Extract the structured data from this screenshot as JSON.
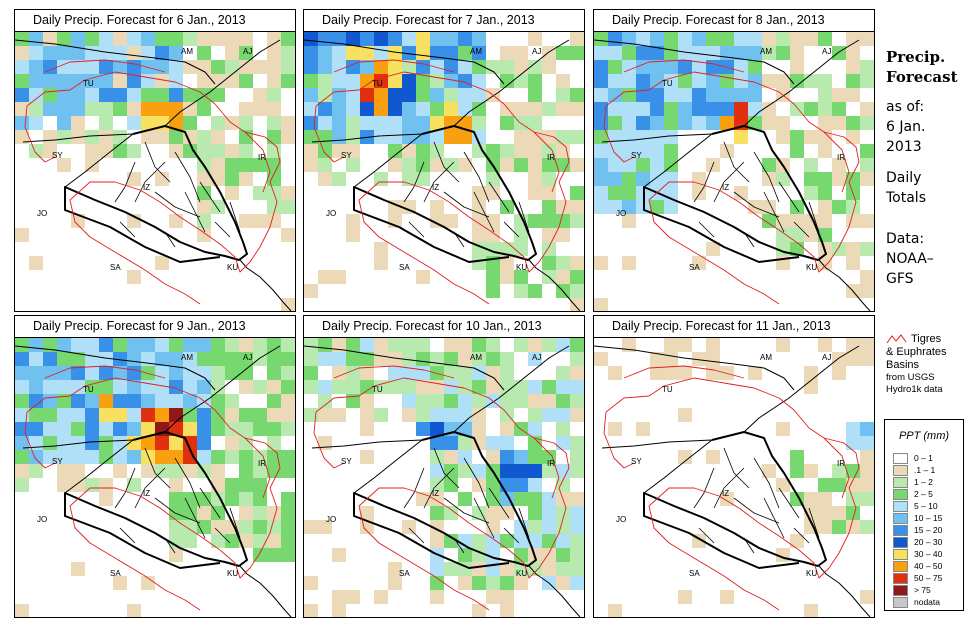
{
  "panels": [
    {
      "title": "Daily Precip. Forecast for  6 Jan., 2013",
      "level": 0
    },
    {
      "title": "Daily Precip. Forecast for  7 Jan., 2013",
      "level": 1
    },
    {
      "title": "Daily Precip. Forecast for  8 Jan., 2013",
      "level": 2
    },
    {
      "title": "Daily Precip. Forecast for  9 Jan., 2013",
      "level": 3
    },
    {
      "title": "Daily Precip. Forecast for  10 Jan., 2013",
      "level": 4
    },
    {
      "title": "Daily Precip. Forecast for  11 Jan., 2013",
      "level": 5
    }
  ],
  "country_labels": [
    "AM",
    "AJ",
    "TU",
    "SY",
    "IR",
    "IZ",
    "JO",
    "SA",
    "KU"
  ],
  "sidebar": {
    "heading_line1": "Precip.",
    "heading_line2": "Forecast",
    "asof_label": "as of:",
    "date_line1": "6 Jan.",
    "date_line2": "2013",
    "daily_line1": "Daily",
    "daily_line2": "Totals",
    "data_line1": "Data:",
    "data_line2": "NOAA–",
    "data_line3": "GFS"
  },
  "basin_legend": {
    "line1": "Tigres",
    "line2": "& Euphrates",
    "line3": "Basins",
    "line4": "from USGS",
    "line5": "Hydro1k data",
    "color": "#e02020"
  },
  "scale": {
    "title": "PPT (mm)",
    "entries": [
      {
        "label": "0 – 1",
        "color": "#ffffff"
      },
      {
        "label": ".1 – 1",
        "color": "#ecd9b8"
      },
      {
        "label": "1 – 2",
        "color": "#b8eab0"
      },
      {
        "label": "2 – 5",
        "color": "#78d870"
      },
      {
        "label": "5 – 10",
        "color": "#b0e0f8"
      },
      {
        "label": "10 – 15",
        "color": "#70c0f0"
      },
      {
        "label": "15 – 20",
        "color": "#3890e8"
      },
      {
        "label": "20 – 30",
        "color": "#1058d0"
      },
      {
        "label": "30 – 40",
        "color": "#f8e060"
      },
      {
        "label": "40 – 50",
        "color": "#f8a010"
      },
      {
        "label": "50 – 75",
        "color": "#e03010"
      },
      {
        "label": "> 75",
        "color": "#901818"
      },
      {
        "label": "nodata",
        "color": "#c8c8c8"
      }
    ]
  }
}
